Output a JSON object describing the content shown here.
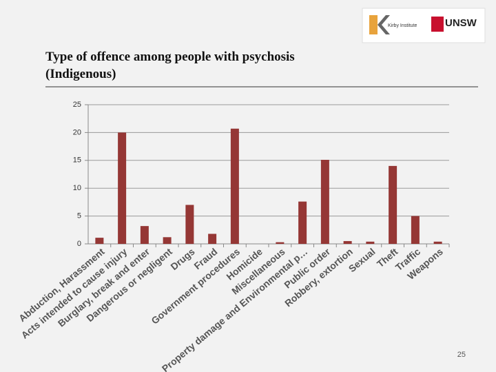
{
  "logos": {
    "kirby": "Kirby Institute",
    "unsw": "UNSW"
  },
  "page_number": "25",
  "chart_data": {
    "type": "bar",
    "title": "Type of offence among people with psychosis (Indigenous)",
    "categories": [
      "Abduction, Harassment",
      "Acts intended to cause injury",
      "Burglary, break and enter",
      "Dangerous or negligent",
      "Drugs",
      "Fraud",
      "Government procedures",
      "Homicide",
      "Miscellaneous",
      "Property damage and Environmental p…",
      "Public order",
      "Robbery, extortion",
      "Sexual",
      "Theft",
      "Traffic",
      "Weapons"
    ],
    "values": [
      1.1,
      20,
      3.2,
      1.2,
      7,
      1.8,
      20.7,
      0,
      0.3,
      7.6,
      15.1,
      0.5,
      0.4,
      14,
      5,
      0.4
    ],
    "color": "#953735",
    "ylim": [
      0,
      25
    ],
    "yticks": [
      0,
      5,
      10,
      15,
      20,
      25
    ],
    "grid": true
  }
}
